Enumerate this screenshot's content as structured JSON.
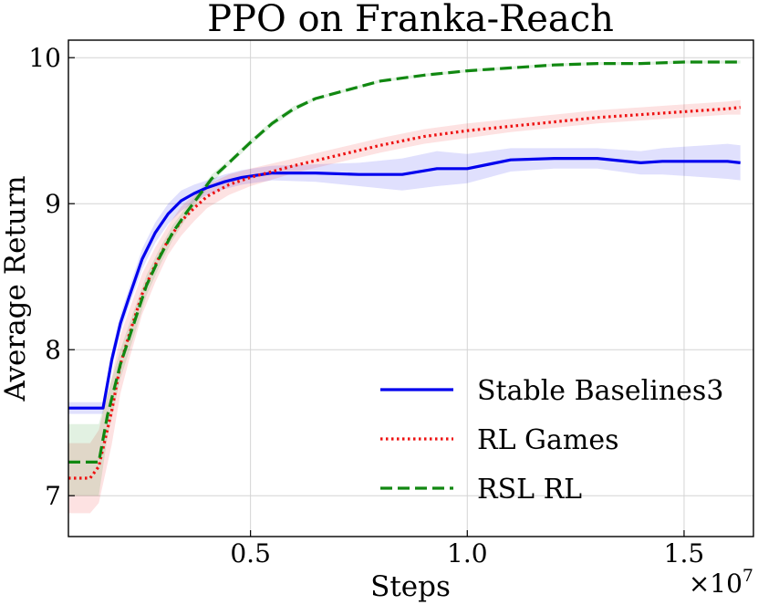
{
  "chart_data": {
    "type": "line",
    "title": "PPO on Franka-Reach",
    "xlabel": "Steps",
    "ylabel": "Average Return",
    "x_multiplier_label": "×10",
    "x_multiplier_exponent": "7",
    "xlim": [
      0.08,
      1.66
    ],
    "ylim": [
      6.72,
      10.12
    ],
    "xticks": [
      0.5,
      1.0,
      1.5
    ],
    "xtick_labels": [
      "0.5",
      "1.0",
      "1.5"
    ],
    "yticks": [
      7,
      8,
      9,
      10
    ],
    "ytick_labels": [
      "7",
      "8",
      "9",
      "10"
    ],
    "grid": true,
    "legend_position": "lower-right",
    "series": [
      {
        "name": "Stable Baselines3",
        "color": "#0000ee",
        "style": "solid",
        "x": [
          0.08,
          0.16,
          0.18,
          0.2,
          0.22,
          0.25,
          0.28,
          0.31,
          0.34,
          0.37,
          0.4,
          0.44,
          0.48,
          0.55,
          0.65,
          0.75,
          0.85,
          0.93,
          1.0,
          1.05,
          1.1,
          1.2,
          1.3,
          1.4,
          1.45,
          1.5,
          1.55,
          1.6,
          1.63
        ],
        "y": [
          7.6,
          7.6,
          7.93,
          8.18,
          8.36,
          8.62,
          8.8,
          8.93,
          9.02,
          9.07,
          9.11,
          9.15,
          9.18,
          9.21,
          9.21,
          9.2,
          9.2,
          9.24,
          9.24,
          9.27,
          9.3,
          9.31,
          9.31,
          9.28,
          9.29,
          9.29,
          9.29,
          9.29,
          9.28
        ],
        "lower": [
          7.56,
          7.56,
          7.87,
          8.12,
          8.3,
          8.55,
          8.73,
          8.86,
          8.95,
          9.01,
          9.06,
          9.1,
          9.13,
          9.16,
          9.15,
          9.12,
          9.09,
          9.12,
          9.14,
          9.18,
          9.22,
          9.24,
          9.24,
          9.2,
          9.2,
          9.19,
          9.18,
          9.17,
          9.16
        ],
        "upper": [
          7.64,
          7.64,
          7.99,
          8.24,
          8.42,
          8.69,
          8.87,
          9.0,
          9.09,
          9.13,
          9.16,
          9.2,
          9.23,
          9.26,
          9.27,
          9.28,
          9.31,
          9.36,
          9.34,
          9.36,
          9.38,
          9.38,
          9.38,
          9.36,
          9.38,
          9.39,
          9.4,
          9.41,
          9.4
        ]
      },
      {
        "name": "RL Games",
        "color": "#ee1111",
        "style": "dotted",
        "x": [
          0.08,
          0.13,
          0.15,
          0.18,
          0.2,
          0.22,
          0.25,
          0.28,
          0.31,
          0.34,
          0.37,
          0.4,
          0.45,
          0.5,
          0.6,
          0.7,
          0.8,
          0.9,
          1.0,
          1.1,
          1.2,
          1.3,
          1.4,
          1.5,
          1.6,
          1.63
        ],
        "y": [
          7.12,
          7.12,
          7.2,
          7.58,
          7.9,
          8.1,
          8.38,
          8.58,
          8.75,
          8.88,
          8.97,
          9.05,
          9.13,
          9.18,
          9.26,
          9.33,
          9.4,
          9.46,
          9.5,
          9.53,
          9.56,
          9.59,
          9.61,
          9.63,
          9.65,
          9.66
        ],
        "lower": [
          6.88,
          6.88,
          6.95,
          7.35,
          7.7,
          7.93,
          8.24,
          8.46,
          8.65,
          8.78,
          8.88,
          8.97,
          9.06,
          9.12,
          9.21,
          9.28,
          9.35,
          9.41,
          9.45,
          9.49,
          9.52,
          9.55,
          9.57,
          9.59,
          9.61,
          9.61
        ],
        "upper": [
          7.36,
          7.36,
          7.45,
          7.81,
          8.1,
          8.27,
          8.52,
          8.7,
          8.85,
          8.98,
          9.06,
          9.13,
          9.2,
          9.24,
          9.31,
          9.38,
          9.45,
          9.51,
          9.55,
          9.58,
          9.61,
          9.64,
          9.66,
          9.68,
          9.7,
          9.71
        ]
      },
      {
        "name": "RSL RL",
        "color": "#118811",
        "style": "dashed",
        "x": [
          0.08,
          0.15,
          0.17,
          0.2,
          0.23,
          0.26,
          0.29,
          0.32,
          0.35,
          0.38,
          0.41,
          0.45,
          0.5,
          0.55,
          0.6,
          0.65,
          0.7,
          0.75,
          0.8,
          0.85,
          0.9,
          1.0,
          1.1,
          1.2,
          1.3,
          1.4,
          1.5,
          1.6,
          1.63
        ],
        "y": [
          7.23,
          7.23,
          7.55,
          7.9,
          8.17,
          8.44,
          8.63,
          8.8,
          8.93,
          9.05,
          9.17,
          9.28,
          9.42,
          9.55,
          9.65,
          9.72,
          9.76,
          9.8,
          9.84,
          9.86,
          9.88,
          9.91,
          9.93,
          9.95,
          9.96,
          9.96,
          9.97,
          9.97,
          9.97
        ],
        "lower": [
          7.0,
          7.0,
          7.4,
          7.8,
          8.08,
          8.37,
          8.57,
          8.75,
          8.89,
          9.02,
          9.14,
          9.26,
          9.4,
          9.53,
          9.63,
          9.71,
          9.75,
          9.79,
          9.83,
          9.85,
          9.87,
          9.9,
          9.92,
          9.94,
          9.95,
          9.95,
          9.96,
          9.96,
          9.96
        ],
        "upper": [
          7.49,
          7.49,
          7.7,
          8.0,
          8.26,
          8.51,
          8.69,
          8.85,
          8.97,
          9.08,
          9.2,
          9.3,
          9.44,
          9.57,
          9.67,
          9.73,
          9.77,
          9.81,
          9.85,
          9.87,
          9.89,
          9.92,
          9.94,
          9.96,
          9.97,
          9.97,
          9.98,
          9.98,
          9.98
        ]
      }
    ]
  }
}
